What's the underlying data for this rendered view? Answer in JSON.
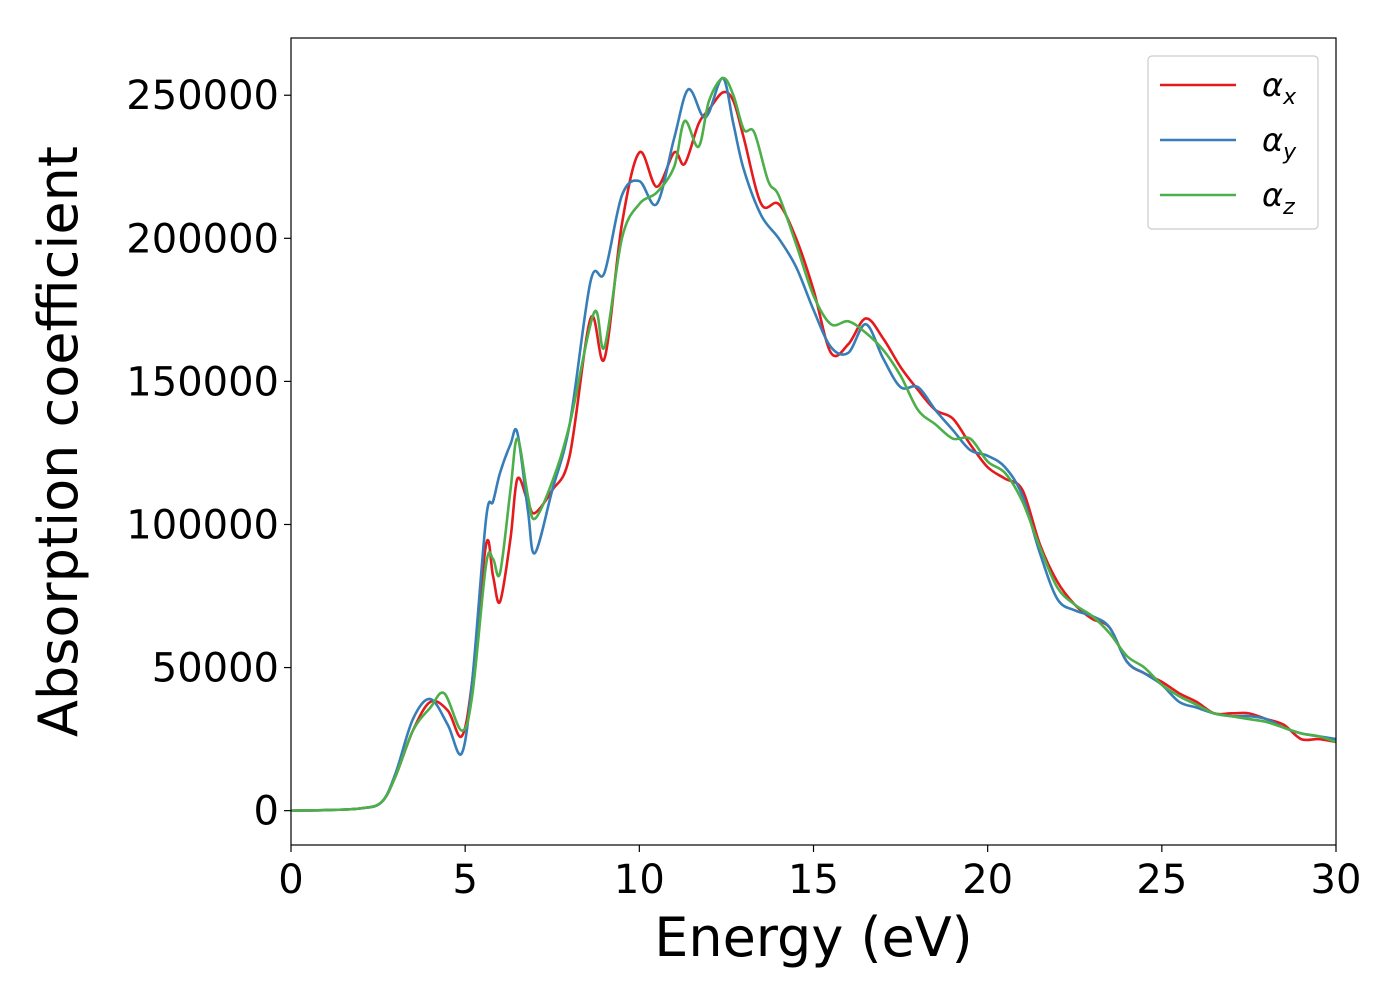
{
  "chart_data": {
    "type": "line",
    "title": "",
    "xlabel": "Energy (eV)",
    "ylabel": "Absorption coefficient",
    "xlim": [
      0,
      30
    ],
    "ylim": [
      -12000,
      270000
    ],
    "xticks": [
      0,
      5,
      10,
      15,
      20,
      25,
      30
    ],
    "yticks": [
      0,
      50000,
      100000,
      150000,
      200000,
      250000
    ],
    "grid": false,
    "legend_position": "top-right",
    "series": [
      {
        "name": "x",
        "symbol": "α",
        "color": "#e41a1c",
        "x": [
          0,
          1,
          2,
          2.6,
          3.0,
          3.5,
          4.0,
          4.5,
          4.9,
          5.2,
          5.6,
          5.8,
          6.0,
          6.3,
          6.5,
          6.8,
          7.0,
          7.5,
          8.0,
          8.6,
          9.0,
          9.5,
          10.0,
          10.5,
          11.0,
          11.3,
          11.7,
          12.0,
          12.4,
          12.7,
          13.0,
          13.5,
          14.0,
          14.5,
          15.0,
          15.5,
          16.0,
          16.5,
          17.0,
          17.5,
          18.0,
          18.5,
          19.0,
          19.5,
          20.0,
          20.5,
          21.0,
          21.5,
          22.0,
          22.5,
          23.0,
          23.5,
          24.0,
          24.5,
          25.0,
          25.5,
          26.0,
          26.5,
          27.0,
          27.5,
          28.0,
          28.5,
          29.0,
          29.5,
          30.0
        ],
        "y": [
          0,
          200,
          800,
          3000,
          12000,
          28000,
          38000,
          35000,
          26000,
          45000,
          93000,
          82000,
          73000,
          95000,
          116000,
          108000,
          104000,
          112000,
          124000,
          172000,
          158000,
          205000,
          230000,
          218000,
          230000,
          226000,
          240000,
          245000,
          251000,
          248000,
          235000,
          212000,
          212000,
          200000,
          182000,
          160000,
          163000,
          172000,
          165000,
          155000,
          147000,
          140000,
          137000,
          128000,
          120000,
          116000,
          112000,
          93000,
          80000,
          72000,
          67000,
          64000,
          52000,
          48000,
          45000,
          41000,
          38000,
          34000,
          34000,
          34000,
          32000,
          30000,
          25000,
          25000,
          24000
        ]
      },
      {
        "name": "y",
        "symbol": "α",
        "color": "#377eb8",
        "x": [
          0,
          1,
          2,
          2.6,
          3.0,
          3.5,
          4.0,
          4.5,
          4.9,
          5.2,
          5.6,
          5.8,
          6.0,
          6.3,
          6.5,
          6.8,
          7.0,
          7.5,
          8.0,
          8.6,
          9.0,
          9.5,
          10.0,
          10.5,
          11.0,
          11.4,
          11.8,
          12.0,
          12.4,
          12.7,
          13.0,
          13.5,
          14.0,
          14.5,
          15.0,
          15.5,
          16.0,
          16.5,
          17.0,
          17.5,
          18.0,
          18.5,
          19.0,
          19.5,
          20.0,
          20.5,
          21.0,
          21.5,
          22.0,
          22.5,
          23.0,
          23.5,
          24.0,
          24.5,
          25.0,
          25.5,
          26.0,
          26.5,
          27.0,
          27.5,
          28.0,
          28.5,
          29.0,
          29.5,
          30.0
        ],
        "y": [
          0,
          200,
          800,
          3000,
          13000,
          32000,
          39000,
          30000,
          20000,
          45000,
          102000,
          108000,
          118000,
          128000,
          132000,
          105000,
          90000,
          112000,
          135000,
          185000,
          188000,
          215000,
          220000,
          212000,
          235000,
          252000,
          243000,
          244000,
          256000,
          240000,
          224000,
          208000,
          200000,
          190000,
          175000,
          162000,
          160000,
          170000,
          158000,
          148000,
          148000,
          140000,
          133000,
          126000,
          124000,
          120000,
          110000,
          90000,
          74000,
          70000,
          68000,
          64000,
          52000,
          48000,
          44000,
          38000,
          36000,
          34000,
          33000,
          33000,
          32000,
          29000,
          27000,
          26000,
          25000
        ]
      },
      {
        "name": "z",
        "symbol": "α",
        "color": "#4daf4a",
        "x": [
          0,
          1,
          2,
          2.6,
          3.0,
          3.5,
          4.0,
          4.4,
          4.9,
          5.2,
          5.6,
          5.8,
          6.0,
          6.3,
          6.5,
          6.8,
          7.0,
          7.5,
          8.0,
          8.7,
          9.0,
          9.5,
          10.0,
          10.5,
          11.0,
          11.3,
          11.7,
          12.0,
          12.4,
          12.7,
          13.0,
          13.3,
          13.7,
          14.0,
          14.5,
          15.0,
          15.5,
          16.0,
          16.5,
          17.0,
          17.5,
          18.0,
          18.5,
          19.0,
          19.5,
          20.0,
          20.5,
          21.0,
          21.5,
          22.0,
          22.5,
          23.0,
          23.5,
          24.0,
          24.5,
          25.0,
          25.5,
          26.0,
          26.5,
          27.0,
          27.5,
          28.0,
          28.5,
          29.0,
          29.5,
          30.0
        ],
        "y": [
          0,
          200,
          800,
          3000,
          12000,
          28000,
          36000,
          41000,
          28000,
          40000,
          86000,
          88000,
          83000,
          112000,
          130000,
          110000,
          102000,
          115000,
          135000,
          174000,
          162000,
          200000,
          212000,
          216000,
          225000,
          241000,
          232000,
          248000,
          256000,
          250000,
          238000,
          237000,
          220000,
          215000,
          198000,
          180000,
          170000,
          171000,
          167000,
          161000,
          152000,
          140000,
          135000,
          130000,
          130000,
          122000,
          118000,
          108000,
          92000,
          78000,
          72000,
          68000,
          62000,
          54000,
          50000,
          44000,
          40000,
          37000,
          34000,
          33000,
          32000,
          31000,
          29000,
          27000,
          26000,
          24000
        ]
      }
    ]
  }
}
